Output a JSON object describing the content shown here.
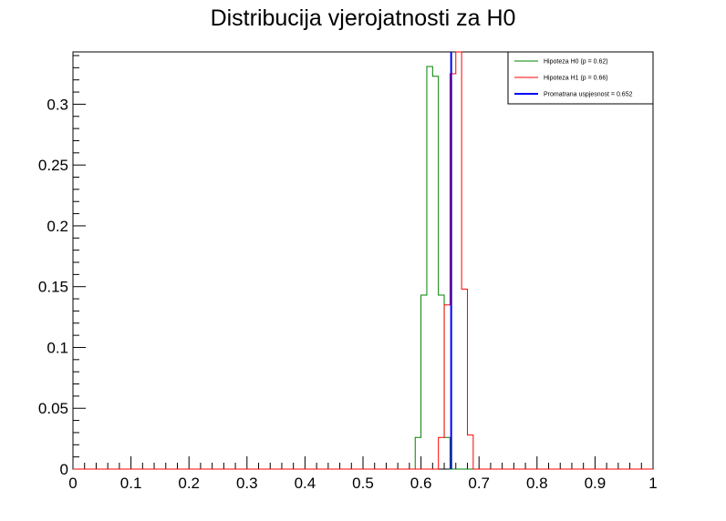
{
  "chart_data": {
    "type": "line",
    "title": "Distribucija vjerojatnosti za H0",
    "xlabel": "",
    "ylabel": "",
    "xlim": [
      0,
      1
    ],
    "ylim": [
      0,
      0.343
    ],
    "grid": false,
    "legend_position": "top-right",
    "x_ticks": [
      0,
      0.1,
      0.2,
      0.3,
      0.4,
      0.5,
      0.6,
      0.7,
      0.8,
      0.9,
      1
    ],
    "x_tick_labels": [
      "0",
      "0.1",
      "0.2",
      "0.3",
      "0.4",
      "0.5",
      "0.6",
      "0.7",
      "0.8",
      "0.9",
      "1"
    ],
    "y_ticks": [
      0,
      0.05,
      0.1,
      0.15,
      0.2,
      0.25,
      0.3
    ],
    "y_tick_labels": [
      "0",
      "0.05",
      "0.1",
      "0.15",
      "0.2",
      "0.25",
      "0.3"
    ],
    "bin_edges_range": [
      0,
      1
    ],
    "bin_count": 100,
    "series": [
      {
        "name": "Hipoteza H0 (p = 0.62)",
        "color": "#008000",
        "style": "step",
        "nonzero_bins": [
          {
            "x_low": 0.59,
            "x_high": 0.6,
            "y": 0.026
          },
          {
            "x_low": 0.6,
            "x_high": 0.61,
            "y": 0.143
          },
          {
            "x_low": 0.61,
            "x_high": 0.62,
            "y": 0.331
          },
          {
            "x_low": 0.62,
            "x_high": 0.63,
            "y": 0.323
          },
          {
            "x_low": 0.63,
            "x_high": 0.64,
            "y": 0.143
          },
          {
            "x_low": 0.64,
            "x_high": 0.65,
            "y": 0.026
          }
        ]
      },
      {
        "name": "Hipoteza H1 (p = 0.66)",
        "color": "#ff0000",
        "style": "step",
        "nonzero_bins": [
          {
            "x_low": 0.63,
            "x_high": 0.64,
            "y": 0.026
          },
          {
            "x_low": 0.64,
            "x_high": 0.65,
            "y": 0.135
          },
          {
            "x_low": 0.65,
            "x_high": 0.66,
            "y": 0.325
          },
          {
            "x_low": 0.66,
            "x_high": 0.67,
            "y": 0.343
          },
          {
            "x_low": 0.67,
            "x_high": 0.68,
            "y": 0.148
          },
          {
            "x_low": 0.68,
            "x_high": 0.69,
            "y": 0.028
          }
        ]
      },
      {
        "name": "Promatrana uspjesnost = 0.652",
        "color": "#0000ff",
        "style": "vertical-line",
        "x": 0.652,
        "y_range": [
          0,
          0.343
        ]
      }
    ]
  }
}
